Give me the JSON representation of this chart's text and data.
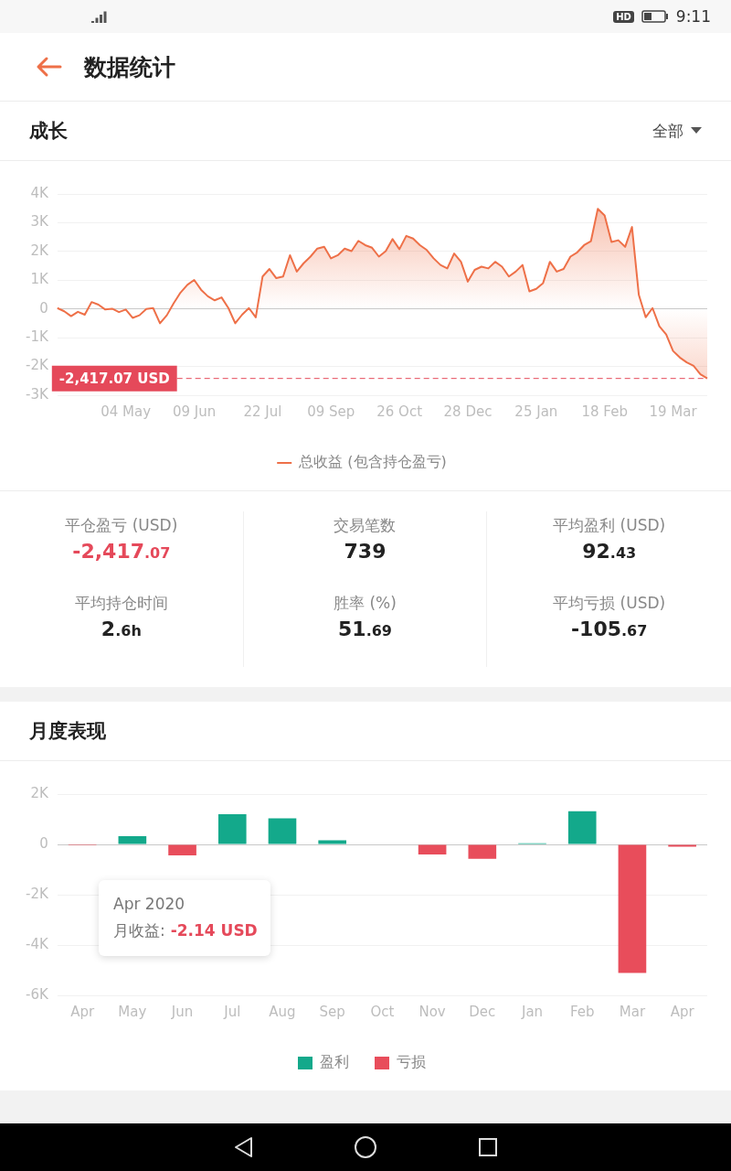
{
  "chart_data": [
    {
      "type": "other",
      "title": "数据统计",
      "annotations": [
        "HD",
        "9:11"
      ]
    },
    {
      "type": "area",
      "title": "成长",
      "annotations": [
        "全部"
      ],
      "categories": [
        null,
        null,
        null,
        null,
        null,
        null,
        null,
        null,
        null,
        null,
        "04 May",
        null,
        null,
        null,
        null,
        null,
        null,
        null,
        null,
        null,
        "09 Jun",
        null,
        null,
        null,
        null,
        null,
        null,
        null,
        null,
        null,
        "22 Jul",
        null,
        null,
        null,
        null,
        null,
        null,
        null,
        null,
        null,
        "09 Sep",
        null,
        null,
        null,
        null,
        null,
        null,
        null,
        null,
        null,
        "26 Oct",
        null,
        null,
        null,
        null,
        null,
        null,
        null,
        null,
        null,
        "28 Dec",
        null,
        null,
        null,
        null,
        null,
        null,
        null,
        null,
        null,
        "25 Jan",
        null,
        null,
        null,
        null,
        null,
        null,
        null,
        null,
        null,
        "18 Feb",
        null,
        null,
        null,
        null,
        null,
        null,
        null,
        null,
        null,
        "19 Mar",
        null,
        null,
        null,
        null,
        null
      ],
      "series": [
        {
          "name": "总收益 (包含持仓盈亏)",
          "color": "#ee7048",
          "values": [
            30,
            -80,
            -250,
            -100,
            -200,
            240,
            150,
            -20,
            10,
            -110,
            -20,
            -310,
            -220,
            0,
            30,
            -500,
            -220,
            200,
            570,
            840,
            1010,
            670,
            440,
            300,
            400,
            30,
            -500,
            -200,
            30,
            -290,
            1130,
            1390,
            1070,
            1130,
            1870,
            1300,
            1590,
            1820,
            2100,
            2160,
            1760,
            1870,
            2100,
            2010,
            2370,
            2220,
            2130,
            1820,
            2010,
            2430,
            2080,
            2540,
            2450,
            2220,
            2050,
            1760,
            1530,
            1410,
            1930,
            1640,
            950,
            1360,
            1470,
            1410,
            1640,
            1470,
            1130,
            1300,
            1530,
            610,
            700,
            900,
            1640,
            1300,
            1390,
            1820,
            1970,
            2220,
            2360,
            3480,
            3250,
            2330,
            2390,
            2160,
            2850,
            490,
            -290,
            30,
            -600,
            -890,
            -1460,
            -1690,
            -1860,
            -1980,
            -2270,
            -2417.07
          ]
        }
      ],
      "ylim": [
        -3000,
        4000
      ],
      "yticks": [
        {
          "value": -3000,
          "label": "-3K"
        },
        {
          "value": -2000,
          "label": "-2K"
        },
        {
          "value": -1000,
          "label": "-1K"
        },
        0,
        {
          "value": 1000,
          "label": "1K"
        },
        {
          "value": 2000,
          "label": "2K"
        },
        {
          "value": 3000,
          "label": "3K"
        },
        {
          "value": 4000,
          "label": "4K"
        }
      ],
      "grid": "y",
      "legend": "bottom",
      "ref_lines": [
        {
          "axis": "y",
          "value": -2417.07,
          "label": "-2,417.07 USD",
          "color": "#e5495a",
          "line_style": "dashed"
        }
      ]
    },
    {
      "type": "other",
      "categories": [
        "平仓盈亏 (USD)",
        "交易笔数",
        "平均盈利 (USD)",
        "平均持仓时间",
        "胜率 (%)",
        "平均亏损 (USD)"
      ],
      "value_labels": [
        "-2,417.07",
        "739",
        "92.43",
        "2.6h",
        "51.69",
        "-105.67"
      ]
    },
    {
      "type": "bar",
      "title": "月度表现",
      "categories": [
        "Apr",
        "May",
        "Jun",
        "Jul",
        "Aug",
        "Sep",
        "Oct",
        "Nov",
        "Dec",
        "Jan",
        "Feb",
        "Mar",
        "Apr"
      ],
      "series": [
        {
          "name": "盈利",
          "color": "#13a98b",
          "values": [
            null,
            330,
            null,
            1200,
            1040,
            160,
            null,
            null,
            null,
            50,
            1320,
            null,
            null
          ]
        },
        {
          "name": "亏损",
          "color": "#e84d5b",
          "values": [
            -2.14,
            null,
            -440,
            null,
            null,
            null,
            null,
            -400,
            -570,
            null,
            null,
            -5110,
            -90
          ]
        }
      ],
      "ylim": [
        -6000,
        2000
      ],
      "yticks": [
        {
          "value": -6000,
          "label": "-6K"
        },
        {
          "value": -4000,
          "label": "-4K"
        },
        {
          "value": -2000,
          "label": "-2K"
        },
        0,
        {
          "value": 2000,
          "label": "2K"
        }
      ],
      "grid": "y",
      "legend": "bottom",
      "annotations": [
        "Apr 2020",
        "月收益: -2.14 USD"
      ]
    }
  ]
}
